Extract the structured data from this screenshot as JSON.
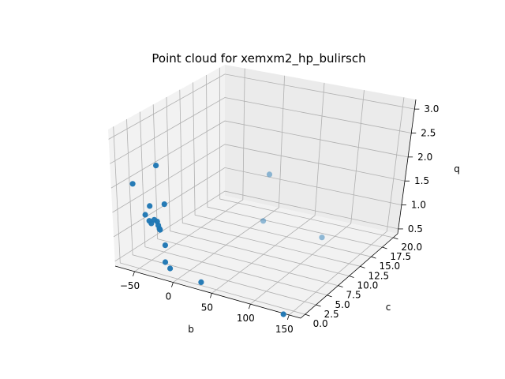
{
  "chart_data": {
    "type": "scatter",
    "projection": "3d",
    "title": "Point cloud for xemxm2_hp_bulirsch",
    "xlabel": "b",
    "ylabel": "c",
    "zlabel": "q",
    "xlim": [
      -75,
      165
    ],
    "ylim": [
      -1,
      21
    ],
    "zlim": [
      0.4,
      3.2
    ],
    "xticks": [
      "−50",
      "0",
      "50",
      "100",
      "150"
    ],
    "yticks": [
      "0.0",
      "2.5",
      "5.0",
      "7.5",
      "10.0",
      "12.5",
      "15.0",
      "17.5",
      "20.0"
    ],
    "zticks": [
      "0.5",
      "1.0",
      "1.5",
      "2.0",
      "2.5",
      "3.0"
    ],
    "grid": true,
    "marker_color": "#1f77b4",
    "pane_color": "#f2f2f2",
    "points": [
      {
        "x": -72,
        "y": 0,
        "z": 2.05
      },
      {
        "x": -46,
        "y": 0,
        "z": 2.55
      },
      {
        "x": -47,
        "y": 0,
        "z": 1.7
      },
      {
        "x": -51,
        "y": 0,
        "z": 1.5
      },
      {
        "x": -45,
        "y": 0,
        "z": 1.4
      },
      {
        "x": -42,
        "y": 0,
        "z": 1.36
      },
      {
        "x": -39,
        "y": 0,
        "z": 1.45
      },
      {
        "x": -35,
        "y": 0,
        "z": 1.43
      },
      {
        "x": -33,
        "y": 0,
        "z": 1.36
      },
      {
        "x": -31,
        "y": 0,
        "z": 1.3
      },
      {
        "x": -30,
        "y": 0,
        "z": 1.28
      },
      {
        "x": -29,
        "y": 0,
        "z": 1.82
      },
      {
        "x": -21,
        "y": 0,
        "z": 1.0
      },
      {
        "x": -18,
        "y": 0,
        "z": 0.66
      },
      {
        "x": -11,
        "y": 0,
        "z": 0.56
      },
      {
        "x": 30,
        "y": 0,
        "z": 0.46
      },
      {
        "x": 138,
        "y": 0,
        "z": 0.28
      },
      {
        "x": 0,
        "y": 20,
        "z": 0.0
      },
      {
        "x": 76,
        "y": 20,
        "z": 0.0
      },
      {
        "x": 0,
        "y": 20,
        "z": 0.97
      }
    ]
  }
}
